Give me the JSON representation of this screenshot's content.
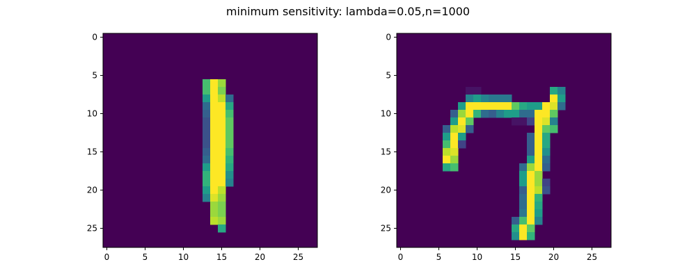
{
  "title": "minimum sensitivity: lambda=0.05,n=1000",
  "chart_data": [
    {
      "type": "heatmap",
      "colormap": "viridis",
      "background_color": "#440154",
      "xlim": [
        -0.5,
        27.5
      ],
      "ylim": [
        27.5,
        -0.5
      ],
      "x_ticks": [
        0,
        5,
        10,
        15,
        20,
        25
      ],
      "y_ticks": [
        0,
        5,
        10,
        15,
        20,
        25
      ],
      "x_tick_labels": [
        "0",
        "5",
        "10",
        "15",
        "20",
        "25"
      ],
      "y_tick_labels": [
        "0",
        "5",
        "10",
        "15",
        "20",
        "25"
      ],
      "cells": [
        [
          6,
          13,
          0.7
        ],
        [
          6,
          14,
          1.0
        ],
        [
          6,
          15,
          0.85
        ],
        [
          7,
          13,
          0.7
        ],
        [
          7,
          14,
          1.0
        ],
        [
          7,
          15,
          0.8
        ],
        [
          8,
          13,
          0.55
        ],
        [
          8,
          14,
          1.0
        ],
        [
          8,
          15,
          0.9
        ],
        [
          8,
          16,
          0.35
        ],
        [
          9,
          13,
          0.35
        ],
        [
          9,
          14,
          1.0
        ],
        [
          9,
          15,
          1.0
        ],
        [
          9,
          16,
          0.6
        ],
        [
          10,
          13,
          0.3
        ],
        [
          10,
          14,
          1.0
        ],
        [
          10,
          15,
          1.0
        ],
        [
          10,
          16,
          0.7
        ],
        [
          11,
          13,
          0.25
        ],
        [
          11,
          14,
          1.0
        ],
        [
          11,
          15,
          1.0
        ],
        [
          11,
          16,
          0.75
        ],
        [
          12,
          13,
          0.25
        ],
        [
          12,
          14,
          1.0
        ],
        [
          12,
          15,
          1.0
        ],
        [
          12,
          16,
          0.75
        ],
        [
          13,
          13,
          0.25
        ],
        [
          13,
          14,
          1.0
        ],
        [
          13,
          15,
          1.0
        ],
        [
          13,
          16,
          0.75
        ],
        [
          14,
          13,
          0.25
        ],
        [
          14,
          14,
          1.0
        ],
        [
          14,
          15,
          1.0
        ],
        [
          14,
          16,
          0.75
        ],
        [
          15,
          13,
          0.3
        ],
        [
          15,
          14,
          1.0
        ],
        [
          15,
          15,
          1.0
        ],
        [
          15,
          16,
          0.7
        ],
        [
          16,
          13,
          0.35
        ],
        [
          16,
          14,
          1.0
        ],
        [
          16,
          15,
          1.0
        ],
        [
          16,
          16,
          0.65
        ],
        [
          17,
          13,
          0.55
        ],
        [
          17,
          14,
          1.0
        ],
        [
          17,
          15,
          1.0
        ],
        [
          17,
          16,
          0.6
        ],
        [
          18,
          13,
          0.65
        ],
        [
          18,
          14,
          1.0
        ],
        [
          18,
          15,
          1.0
        ],
        [
          18,
          16,
          0.5
        ],
        [
          19,
          13,
          0.65
        ],
        [
          19,
          14,
          1.0
        ],
        [
          19,
          15,
          1.0
        ],
        [
          19,
          16,
          0.45
        ],
        [
          20,
          13,
          0.55
        ],
        [
          20,
          14,
          1.0
        ],
        [
          20,
          15,
          0.9
        ],
        [
          21,
          13,
          0.45
        ],
        [
          21,
          14,
          0.95
        ],
        [
          21,
          15,
          0.85
        ],
        [
          22,
          14,
          0.85
        ],
        [
          22,
          15,
          0.8
        ],
        [
          23,
          14,
          0.85
        ],
        [
          23,
          15,
          0.8
        ],
        [
          24,
          14,
          0.9
        ],
        [
          24,
          15,
          0.85
        ],
        [
          25,
          15,
          0.6
        ]
      ]
    },
    {
      "type": "heatmap",
      "colormap": "viridis",
      "background_color": "#440154",
      "xlim": [
        -0.5,
        27.5
      ],
      "ylim": [
        27.5,
        -0.5
      ],
      "x_ticks": [
        0,
        5,
        10,
        15,
        20,
        25
      ],
      "y_ticks": [
        0,
        5,
        10,
        15,
        20,
        25
      ],
      "x_tick_labels": [
        "0",
        "5",
        "10",
        "15",
        "20",
        "25"
      ],
      "y_tick_labels": [
        "0",
        "5",
        "10",
        "15",
        "20",
        "25"
      ],
      "cells": [
        [
          7,
          9,
          0.05
        ],
        [
          7,
          10,
          0.05
        ],
        [
          7,
          20,
          0.6
        ],
        [
          7,
          21,
          0.45
        ],
        [
          8,
          9,
          0.45
        ],
        [
          8,
          10,
          0.55
        ],
        [
          8,
          11,
          0.45
        ],
        [
          8,
          12,
          0.4
        ],
        [
          8,
          13,
          0.4
        ],
        [
          8,
          14,
          0.4
        ],
        [
          8,
          20,
          1.0
        ],
        [
          8,
          21,
          0.55
        ],
        [
          9,
          8,
          0.55
        ],
        [
          9,
          9,
          1.0
        ],
        [
          9,
          10,
          1.0
        ],
        [
          9,
          11,
          1.0
        ],
        [
          9,
          12,
          1.0
        ],
        [
          9,
          13,
          1.0
        ],
        [
          9,
          14,
          1.0
        ],
        [
          9,
          15,
          0.75
        ],
        [
          9,
          16,
          0.6
        ],
        [
          9,
          17,
          0.55
        ],
        [
          9,
          18,
          0.55
        ],
        [
          9,
          19,
          1.0
        ],
        [
          9,
          20,
          0.95
        ],
        [
          9,
          21,
          0.35
        ],
        [
          10,
          7,
          0.3
        ],
        [
          10,
          8,
          0.85
        ],
        [
          10,
          9,
          1.0
        ],
        [
          10,
          10,
          0.65
        ],
        [
          10,
          11,
          0.35
        ],
        [
          10,
          12,
          0.3
        ],
        [
          10,
          13,
          0.45
        ],
        [
          10,
          14,
          0.55
        ],
        [
          10,
          15,
          0.55
        ],
        [
          10,
          16,
          0.35
        ],
        [
          10,
          17,
          0.35
        ],
        [
          10,
          18,
          1.0
        ],
        [
          10,
          19,
          1.0
        ],
        [
          10,
          20,
          0.75
        ],
        [
          11,
          7,
          0.55
        ],
        [
          11,
          8,
          1.0
        ],
        [
          11,
          9,
          0.75
        ],
        [
          11,
          15,
          0.05
        ],
        [
          11,
          16,
          0.05
        ],
        [
          11,
          17,
          0.2
        ],
        [
          11,
          18,
          1.0
        ],
        [
          11,
          19,
          0.95
        ],
        [
          11,
          20,
          0.45
        ],
        [
          12,
          6,
          0.3
        ],
        [
          12,
          7,
          0.9
        ],
        [
          12,
          8,
          0.95
        ],
        [
          12,
          9,
          0.3
        ],
        [
          12,
          18,
          1.0
        ],
        [
          12,
          19,
          0.75
        ],
        [
          12,
          20,
          0.7
        ],
        [
          13,
          6,
          0.55
        ],
        [
          13,
          7,
          1.0
        ],
        [
          13,
          8,
          0.55
        ],
        [
          13,
          17,
          0.3
        ],
        [
          13,
          18,
          1.0
        ],
        [
          13,
          19,
          0.6
        ],
        [
          14,
          6,
          0.7
        ],
        [
          14,
          7,
          1.0
        ],
        [
          14,
          8,
          0.2
        ],
        [
          14,
          17,
          0.3
        ],
        [
          14,
          18,
          1.0
        ],
        [
          14,
          19,
          0.6
        ],
        [
          15,
          6,
          0.9
        ],
        [
          15,
          7,
          0.95
        ],
        [
          15,
          17,
          0.3
        ],
        [
          15,
          18,
          1.0
        ],
        [
          15,
          19,
          0.5
        ],
        [
          16,
          6,
          1.0
        ],
        [
          16,
          7,
          0.85
        ],
        [
          16,
          17,
          0.55
        ],
        [
          16,
          18,
          1.0
        ],
        [
          16,
          19,
          0.35
        ],
        [
          17,
          6,
          0.6
        ],
        [
          17,
          7,
          0.7
        ],
        [
          17,
          16,
          0.35
        ],
        [
          17,
          17,
          0.85
        ],
        [
          17,
          18,
          1.0
        ],
        [
          17,
          19,
          0.3
        ],
        [
          18,
          16,
          0.55
        ],
        [
          18,
          17,
          1.0
        ],
        [
          18,
          18,
          0.85
        ],
        [
          19,
          16,
          0.55
        ],
        [
          19,
          17,
          1.0
        ],
        [
          19,
          18,
          0.85
        ],
        [
          19,
          19,
          0.2
        ],
        [
          20,
          16,
          0.3
        ],
        [
          20,
          17,
          1.0
        ],
        [
          20,
          18,
          0.9
        ],
        [
          20,
          19,
          0.25
        ],
        [
          21,
          16,
          0.35
        ],
        [
          21,
          17,
          1.0
        ],
        [
          21,
          18,
          0.65
        ],
        [
          22,
          16,
          0.35
        ],
        [
          22,
          17,
          1.0
        ],
        [
          22,
          18,
          0.6
        ],
        [
          23,
          16,
          0.4
        ],
        [
          23,
          17,
          1.0
        ],
        [
          23,
          18,
          0.55
        ],
        [
          24,
          15,
          0.3
        ],
        [
          24,
          16,
          0.7
        ],
        [
          24,
          17,
          1.0
        ],
        [
          24,
          18,
          0.45
        ],
        [
          25,
          15,
          0.6
        ],
        [
          25,
          16,
          1.0
        ],
        [
          25,
          17,
          0.75
        ],
        [
          26,
          15,
          0.5
        ],
        [
          26,
          16,
          1.0
        ],
        [
          26,
          17,
          0.65
        ]
      ]
    }
  ]
}
